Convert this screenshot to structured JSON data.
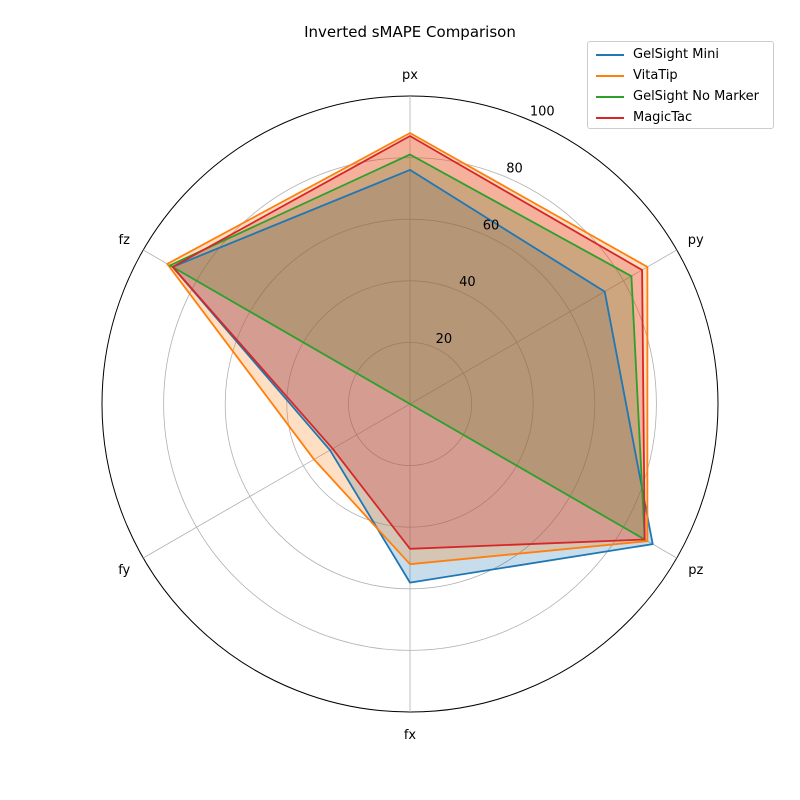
{
  "chart_data": {
    "type": "radar",
    "title": "Inverted sMAPE Comparison",
    "axes": [
      "px",
      "py",
      "pz",
      "fx",
      "fy",
      "fz"
    ],
    "rlim": [
      0,
      100
    ],
    "rticks": [
      20,
      40,
      60,
      80,
      100
    ],
    "grid": true,
    "legend_position": "top-right",
    "series": [
      {
        "name": "GelSight Mini",
        "color": "#1f77b4",
        "fill": false,
        "values": [
          76,
          73,
          91,
          58,
          30,
          89
        ]
      },
      {
        "name": "VitaTip",
        "color": "#ff7f0e",
        "fill": true,
        "values": [
          88,
          89,
          89,
          52,
          36,
          91
        ]
      },
      {
        "name": "GelSight No Marker",
        "color": "#2ca02c",
        "fill": false,
        "values": [
          81,
          83,
          88,
          0,
          0,
          90
        ]
      },
      {
        "name": "MagicTac",
        "color": "#d62728",
        "fill": true,
        "values": [
          87,
          87,
          88,
          47,
          29,
          89
        ]
      }
    ]
  }
}
